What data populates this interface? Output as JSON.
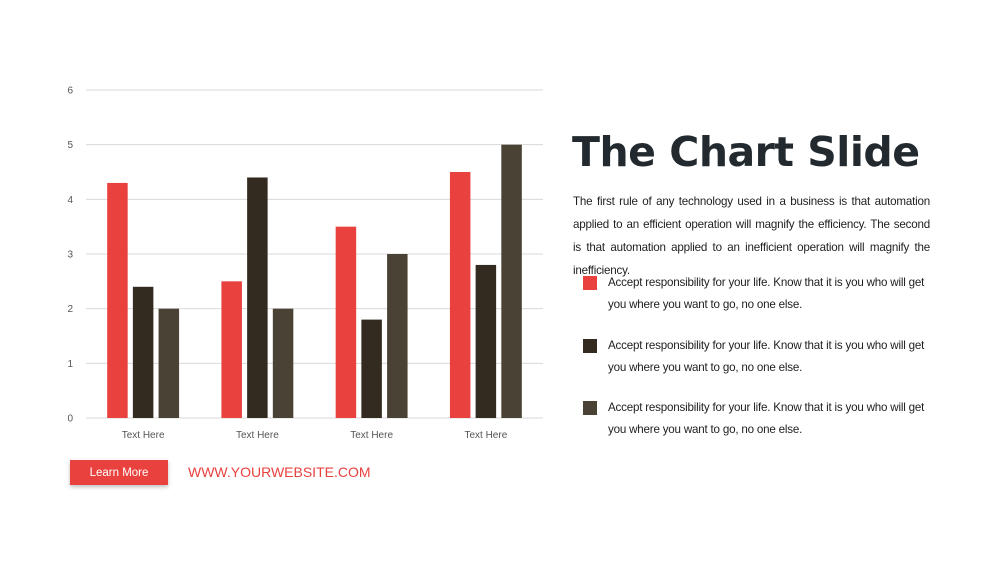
{
  "colors": {
    "accent_red": "#e8413e",
    "series_dark": "#332b1f",
    "series_brown": "#4a4335",
    "title": "#222a2f",
    "grid": "#d9d9d9"
  },
  "chart_data": {
    "type": "bar",
    "categories": [
      "Text Here",
      "Text Here",
      "Text Here",
      "Text Here"
    ],
    "series": [
      {
        "values": [
          4.3,
          2.5,
          3.5,
          4.5
        ],
        "color": "#e8413e"
      },
      {
        "values": [
          2.4,
          4.4,
          1.8,
          2.8
        ],
        "color": "#332b1f"
      },
      {
        "values": [
          2.0,
          2.0,
          3.0,
          5.0
        ],
        "color": "#4a4335"
      }
    ],
    "y_ticks": [
      "0",
      "1",
      "2",
      "3",
      "4",
      "5",
      "6"
    ],
    "ylim": [
      0,
      6
    ],
    "grid": true,
    "legend": false
  },
  "slide": {
    "title": "The Chart Slide",
    "description": "The first rule of any technology used in a business is that automation applied to an efficient operation will magnify the efficiency. The second is that automation applied to an inefficient operation will magnify the inefficiency.",
    "bullets": [
      {
        "text": "Accept responsibility for your life. Know that it is you who will get you where you want to go, no one else.",
        "color": "#e8413e"
      },
      {
        "text": "Accept responsibility for your life. Know that it is you who will get you where you want to go, no one else.",
        "color": "#332b1f"
      },
      {
        "text": "Accept responsibility for your life. Know that it is you who will get you where you want to go, no one else.",
        "color": "#4a4335"
      }
    ]
  },
  "footer": {
    "button_label": "Learn More",
    "website": "WWW.YOURWEBSITE.COM"
  }
}
